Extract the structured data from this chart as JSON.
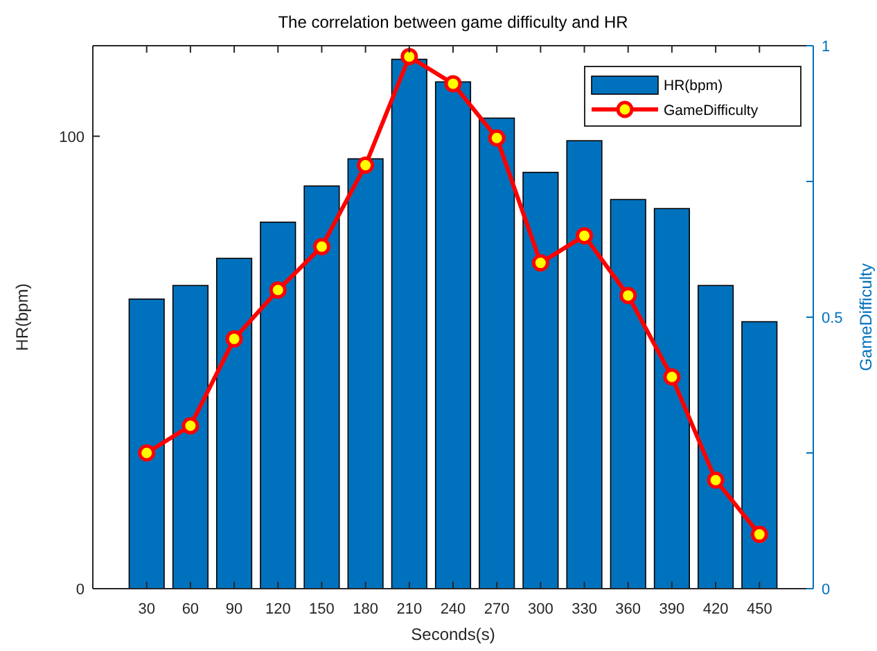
{
  "chart_data": {
    "type": "bar",
    "title": "The correlation between game difficulty and HR",
    "xlabel": "Seconds(s)",
    "ylabel": "HR(bpm)",
    "y2label": "GameDifficulty",
    "categories": [
      "30",
      "60",
      "90",
      "120",
      "150",
      "180",
      "210",
      "240",
      "270",
      "300",
      "330",
      "360",
      "390",
      "420",
      "450"
    ],
    "series": [
      {
        "name": "HR(bpm)",
        "color": "#0072bd",
        "values": [
          64,
          67,
          73,
          81,
          89,
          95,
          117,
          112,
          104,
          92,
          99,
          86,
          84,
          67,
          59
        ]
      },
      {
        "name": "GameDifficulty",
        "type": "line",
        "axis": "y2",
        "color": "#ff0000",
        "marker": "circle",
        "line_style": "solid",
        "values": [
          0.25,
          0.3,
          0.46,
          0.55,
          0.63,
          0.78,
          0.98,
          0.93,
          0.83,
          0.6,
          0.65,
          0.54,
          0.39,
          0.2,
          0.1
        ]
      }
    ],
    "ylim": [
      0,
      120
    ],
    "yticks": [
      0,
      100
    ],
    "y2lim": [
      0,
      1
    ],
    "y2ticks": [
      0,
      {
        "value": 0.25,
        "label": null
      },
      0.5,
      {
        "value": 0.75,
        "label": null
      },
      1
    ],
    "grid": false,
    "legend": "top right"
  }
}
